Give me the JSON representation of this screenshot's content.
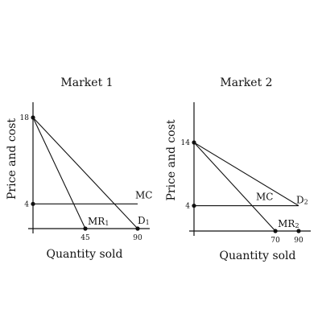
{
  "chart_data": [
    {
      "type": "line",
      "title": "Market 1",
      "xlabel": "Quantity sold",
      "ylabel": "Price and cost",
      "xlim": [
        0,
        100
      ],
      "ylim": [
        0,
        21
      ],
      "x_ticks": [
        {
          "value": 45,
          "label": "45"
        },
        {
          "value": 90,
          "label": "90"
        }
      ],
      "y_ticks": [
        {
          "value": 18,
          "label": "18"
        },
        {
          "value": 4,
          "label": "4"
        }
      ],
      "series": [
        {
          "name": "D1",
          "label": "D",
          "sub": "1",
          "points": [
            [
              0,
              18
            ],
            [
              90,
              0
            ]
          ]
        },
        {
          "name": "MR1",
          "label": "MR",
          "sub": "1",
          "points": [
            [
              0,
              18
            ],
            [
              45,
              0
            ]
          ]
        },
        {
          "name": "MC",
          "label": "MC",
          "sub": "",
          "points": [
            [
              0,
              4
            ],
            [
              90,
              4
            ]
          ]
        }
      ]
    },
    {
      "type": "line",
      "title": "Market 2",
      "xlabel": "Quantity sold",
      "ylabel": "Price and cost",
      "xlim": [
        0,
        100
      ],
      "ylim": [
        0,
        18
      ],
      "x_ticks": [
        {
          "value": 70,
          "label": "70"
        },
        {
          "value": 90,
          "label": "90"
        }
      ],
      "y_ticks": [
        {
          "value": 14,
          "label": "14"
        },
        {
          "value": 4,
          "label": "4"
        }
      ],
      "series": [
        {
          "name": "D2",
          "label": "D",
          "sub": "2",
          "points": [
            [
              0,
              14
            ],
            [
              90,
              4
            ]
          ]
        },
        {
          "name": "MR2",
          "label": "MR",
          "sub": "2",
          "points": [
            [
              0,
              14
            ],
            [
              70,
              0
            ]
          ]
        },
        {
          "name": "MC",
          "label": "MC",
          "sub": "",
          "points": [
            [
              0,
              4
            ],
            [
              90,
              4
            ]
          ]
        }
      ]
    }
  ]
}
